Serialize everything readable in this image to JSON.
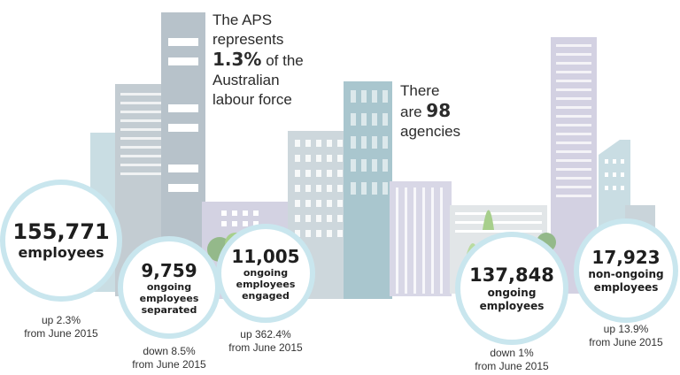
{
  "facts": {
    "aps_share": {
      "line1": "The APS",
      "line2": "represents",
      "value": "1.3%",
      "line3_suffix": " of the",
      "line4": "Australian",
      "line5": "labour force"
    },
    "agencies": {
      "line1": "There",
      "prefix": "are ",
      "value": "98",
      "line3": "agencies"
    }
  },
  "stats": [
    {
      "value": "155,771",
      "label": "employees",
      "change": "up 2.3%",
      "period": "from June 2015"
    },
    {
      "value": "9,759",
      "label": "ongoing employees separated",
      "change": "down 8.5%",
      "period": "from June 2015"
    },
    {
      "value": "11,005",
      "label": "ongoing employees engaged",
      "change": "up 362.4%",
      "period": "from June 2015"
    },
    {
      "value": "137,848",
      "label": "ongoing employees",
      "change": "down 1%",
      "period": "from June 2015"
    },
    {
      "value": "17,923",
      "label": "non-ongoing employees",
      "change": "up 13.9%",
      "period": "from June 2015"
    }
  ],
  "colors": {
    "circle_border": "#c9e6ee",
    "tower_gray": "#b8c4cc",
    "tower_teal": "#a9c8d0",
    "tower_lavender": "#d5d4e3",
    "tree_green": "#a7cf8c",
    "text": "#2b2b2b"
  }
}
